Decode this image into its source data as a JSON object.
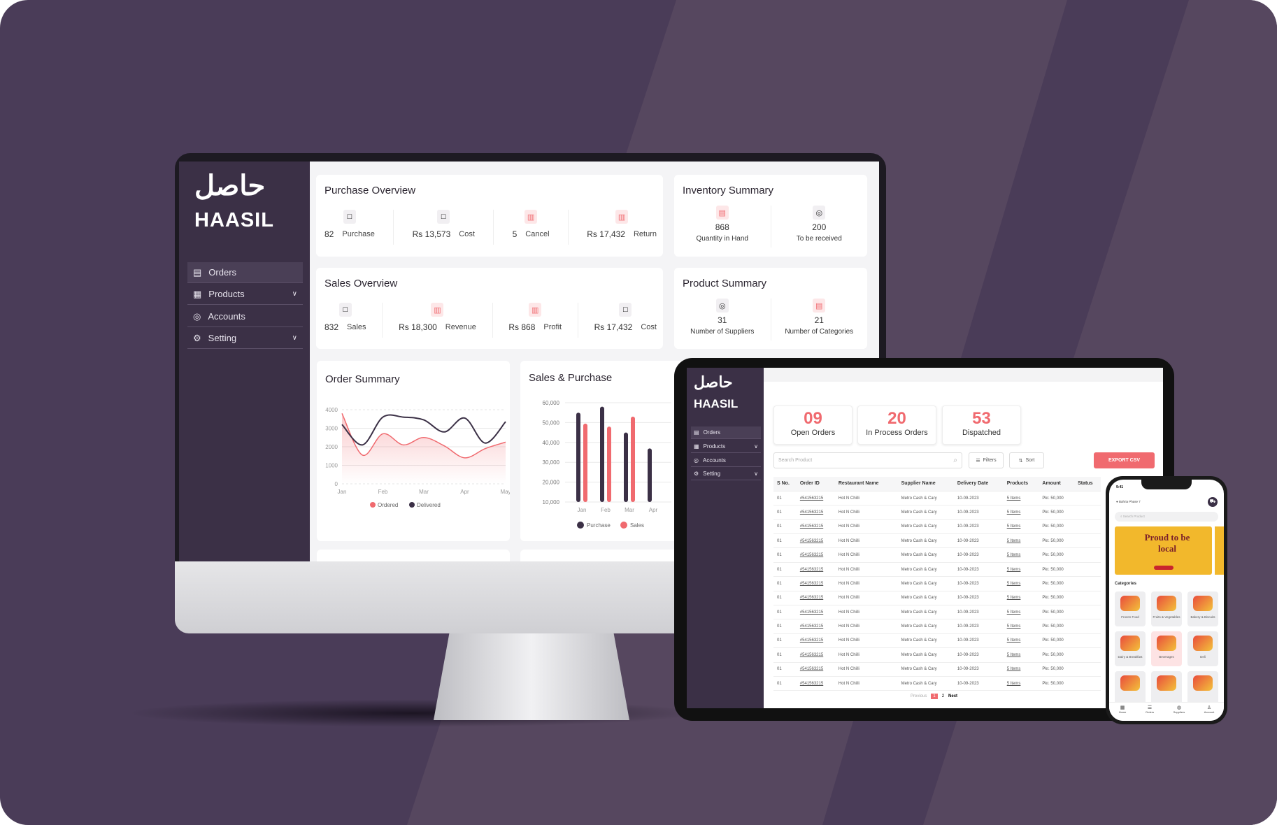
{
  "colors": {
    "accent": "#f06a6f",
    "dark": "#3b3046",
    "background": "#4a3c58"
  },
  "brand": {
    "name": "HAASIL",
    "arabic": "حاصل"
  },
  "sidebar": {
    "items": [
      {
        "label": "Orders",
        "icon": "orders-icon"
      },
      {
        "label": "Products",
        "icon": "grid-icon",
        "chevron": true
      },
      {
        "label": "Accounts",
        "icon": "accounts-icon"
      },
      {
        "label": "Setting",
        "icon": "gear-icon",
        "chevron": true
      }
    ]
  },
  "purchase_overview": {
    "title": "Purchase Overview",
    "items": [
      {
        "value": "82",
        "label": "Purchase"
      },
      {
        "value": "Rs 13,573",
        "label": "Cost"
      },
      {
        "value": "5",
        "label": "Cancel"
      },
      {
        "value": "Rs 17,432",
        "label": "Return"
      }
    ]
  },
  "inventory_summary": {
    "title": "Inventory Summary",
    "items": [
      {
        "value": "868",
        "label": "Quantity in Hand"
      },
      {
        "value": "200",
        "label": "To be received"
      }
    ]
  },
  "sales_overview": {
    "title": "Sales Overview",
    "items": [
      {
        "value": "832",
        "label": "Sales"
      },
      {
        "value": "Rs 18,300",
        "label": "Revenue"
      },
      {
        "value": "Rs 868",
        "label": "Profit"
      },
      {
        "value": "Rs 17,432",
        "label": "Cost"
      }
    ]
  },
  "product_summary": {
    "title": "Product Summary",
    "items": [
      {
        "value": "31",
        "label": "Number of Suppliers"
      },
      {
        "value": "21",
        "label": "Number of Categories"
      }
    ]
  },
  "chart_data": [
    {
      "type": "area",
      "title": "Order Summary",
      "categories": [
        "Jan",
        "Feb",
        "Mar",
        "Apr",
        "May"
      ],
      "x": [
        0,
        0.5,
        1,
        1.5,
        2,
        2.5,
        3,
        3.5,
        4
      ],
      "ylim": [
        0,
        4000
      ],
      "yticks": [
        "0",
        "1000",
        "2000",
        "3000",
        "4000"
      ],
      "legend": "bottom",
      "series": [
        {
          "name": "Ordered",
          "color": "#f06a6f",
          "values": [
            3800,
            1550,
            2700,
            2100,
            2500,
            2050,
            1400,
            1900,
            2250
          ]
        },
        {
          "name": "Delivered",
          "color": "#3b3046",
          "values": [
            3200,
            2100,
            3600,
            3600,
            3450,
            2800,
            3550,
            2200,
            3350
          ]
        }
      ]
    },
    {
      "type": "bar",
      "title": "Sales & Purchase",
      "categories": [
        "Jan",
        "Feb",
        "Mar",
        "Apr"
      ],
      "ylim": [
        10000,
        60000
      ],
      "yticks": [
        "10,000",
        "20,000",
        "30,000",
        "40,000",
        "50,000",
        "60,000"
      ],
      "legend": "bottom",
      "series": [
        {
          "name": "Purchase",
          "color": "#3b3046",
          "values": [
            55000,
            58000,
            45000,
            37000
          ]
        },
        {
          "name": "Sales",
          "color": "#f06a6f",
          "values": [
            49500,
            48000,
            53000,
            null
          ]
        }
      ]
    }
  ],
  "orders": {
    "stats": [
      {
        "value": "09",
        "label": "Open Orders"
      },
      {
        "value": "20",
        "label": "In Process Orders"
      },
      {
        "value": "53",
        "label": "Dispatched"
      }
    ],
    "search_placeholder": "Search Product",
    "filters": "Filters",
    "sort": "Sort",
    "export": "EXPORT CSV",
    "columns": [
      "S No.",
      "Order ID",
      "Restaurant Name",
      "Supplier Name",
      "Delivery Date",
      "Products",
      "Amount",
      "Status"
    ],
    "row": [
      "01",
      "#541563215",
      "Hot N Chilli",
      "Metro Cash & Cary",
      "10-09-2023",
      "5 Items",
      "Pkr. 50,000"
    ],
    "row_count": 14,
    "pagination": {
      "previous": "Previous",
      "pages": [
        "1",
        "2"
      ],
      "current": "1",
      "next": "Next"
    }
  },
  "phone": {
    "time": "9:41",
    "location": "Bahria Phase 7",
    "search_placeholder": "Search Product",
    "banner": "Proud to be local",
    "categories_title": "Categories",
    "categories": [
      "Frozen Food",
      "Fruits & Vegetables",
      "Bakery & Biscuits",
      "Dairy & Breakfast",
      "Beverages",
      "Deli",
      "",
      "",
      ""
    ],
    "tabs": [
      "Home",
      "Orders",
      "Suppliers",
      "Account"
    ]
  }
}
